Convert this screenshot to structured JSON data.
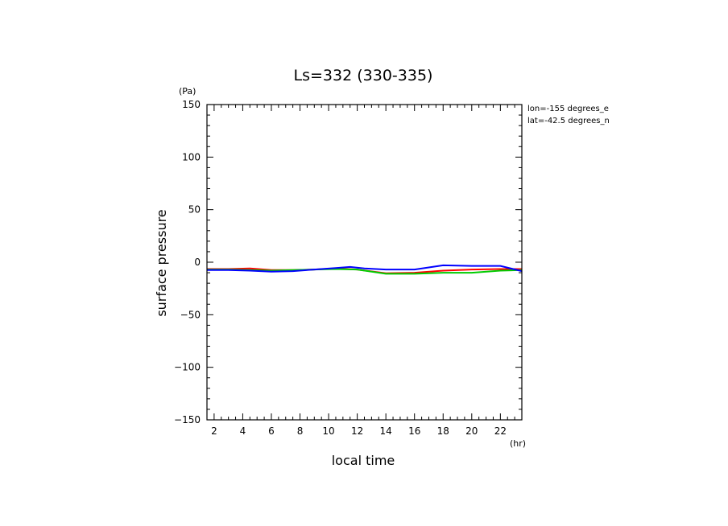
{
  "chart_data": {
    "type": "line",
    "title": "Ls=332 (330-335)",
    "xlabel": "local time",
    "ylabel": "surface pressure",
    "x_unit": "(hr)",
    "y_unit": "(Pa)",
    "annotations": [
      "lon=-155 degrees_e",
      "lat=-42.5 degrees_n"
    ],
    "xlim": [
      1.5,
      23.5
    ],
    "ylim": [
      -150,
      150
    ],
    "x_ticks": [
      2,
      4,
      6,
      8,
      10,
      12,
      14,
      16,
      18,
      20,
      22
    ],
    "y_ticks": [
      150,
      100,
      50,
      0,
      -50,
      -100,
      -150
    ],
    "x_tick_labels": [
      "2",
      "4",
      "6",
      "8",
      "10",
      "12",
      "14",
      "16",
      "18",
      "20",
      "22"
    ],
    "y_tick_labels": [
      "150",
      "100",
      "50",
      "0",
      "−50",
      "−100",
      "−150"
    ],
    "grid": false,
    "series": [
      {
        "color": "#ff0000",
        "points": [
          [
            1.5,
            -6.5
          ],
          [
            3,
            -6.5
          ],
          [
            4.5,
            -6
          ],
          [
            6,
            -7.5
          ],
          [
            7.5,
            -7.5
          ],
          [
            9,
            -7
          ],
          [
            10.5,
            -6
          ],
          [
            12,
            -7
          ],
          [
            14,
            -10.5
          ],
          [
            16,
            -10
          ],
          [
            18,
            -8
          ],
          [
            20,
            -7
          ],
          [
            22,
            -6.5
          ],
          [
            23.5,
            -6.5
          ]
        ]
      },
      {
        "color": "#00cc00",
        "points": [
          [
            1.5,
            -7
          ],
          [
            3,
            -7
          ],
          [
            4.5,
            -7.5
          ],
          [
            6,
            -8
          ],
          [
            7.5,
            -7.5
          ],
          [
            9,
            -7
          ],
          [
            10.5,
            -6.5
          ],
          [
            12,
            -7
          ],
          [
            14,
            -11
          ],
          [
            16,
            -11
          ],
          [
            18,
            -10
          ],
          [
            20,
            -10
          ],
          [
            22,
            -8
          ],
          [
            23.5,
            -7.5
          ]
        ]
      },
      {
        "color": "#0000ff",
        "points": [
          [
            1.5,
            -7.5
          ],
          [
            3,
            -7.5
          ],
          [
            4.5,
            -8
          ],
          [
            6,
            -9
          ],
          [
            7.5,
            -8.5
          ],
          [
            9,
            -7
          ],
          [
            10.5,
            -5.5
          ],
          [
            11.5,
            -4.5
          ],
          [
            12.5,
            -6
          ],
          [
            14,
            -7
          ],
          [
            16,
            -7
          ],
          [
            18,
            -3
          ],
          [
            20,
            -3.5
          ],
          [
            22,
            -3.5
          ],
          [
            23.5,
            -8.5
          ]
        ]
      }
    ]
  }
}
